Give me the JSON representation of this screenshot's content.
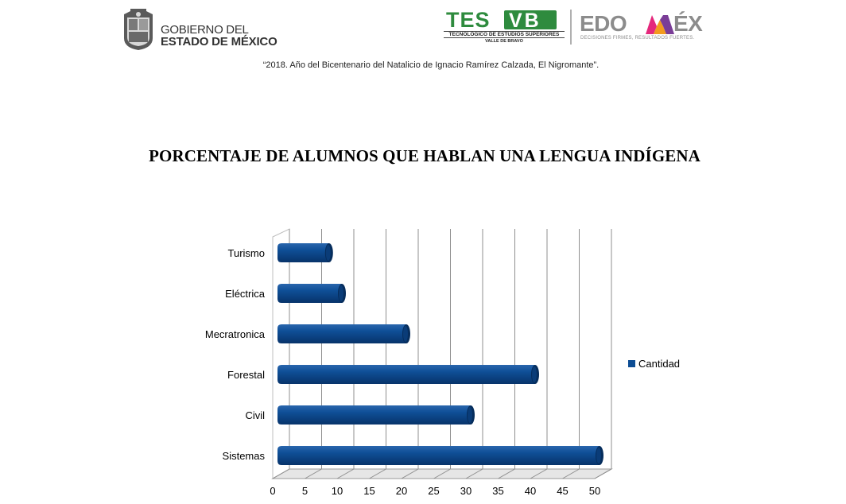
{
  "header": {
    "government_line1": "GOBIERNO DEL",
    "government_line2": "ESTADO DE MÉXICO",
    "tesvb_left": "TES",
    "tesvb_right": "VB",
    "tesvb_sub1": "TECNOLÓGICO DE ESTUDIOS SUPERIORES",
    "tesvb_sub2": "VALLE DE BRAVO",
    "edomex_left": "EDO",
    "edomex_right": "ÉX",
    "edomex_tagline": "DECISIONES FIRMES, RESULTADOS FUERTES.",
    "motto": "“2018. Año del Bicentenario del Natalicio de Ignacio Ramírez Calzada, El Nigromante”."
  },
  "colors": {
    "bar_fill": "#0d4d94",
    "bar_dark": "#062d5c",
    "bar_light": "#3d7cc4",
    "tes_green": "#2e8b3e",
    "edomex_grey": "#8c8c8c"
  },
  "chart_data": {
    "type": "bar",
    "orientation": "horizontal",
    "style": "3d-cylinder",
    "title": "PORCENTAJE DE ALUMNOS QUE HABLAN UNA LENGUA INDÍGENA",
    "categories": [
      "Turismo",
      "Eléctrica",
      "Mecratronica",
      "Forestal",
      "Civil",
      "Sistemas"
    ],
    "series": [
      {
        "name": "Cantidad",
        "values": [
          8,
          10,
          20,
          40,
          30,
          50
        ]
      }
    ],
    "xlim": [
      0,
      50
    ],
    "xticks": [
      0,
      5,
      10,
      15,
      20,
      25,
      30,
      35,
      40,
      45,
      50
    ],
    "grid": true,
    "legend_position": "right"
  }
}
